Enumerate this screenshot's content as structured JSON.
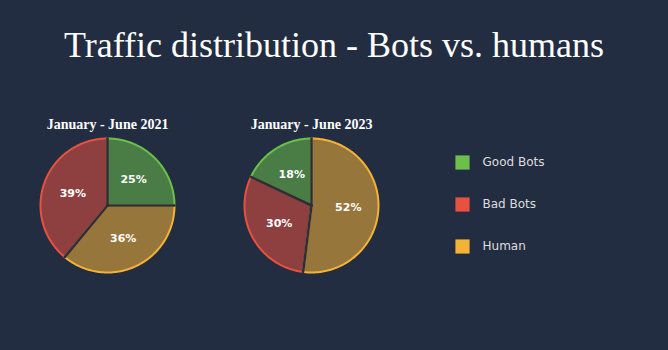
{
  "title": "Traffic distribution - Bots vs. humans",
  "chart_data": [
    {
      "type": "pie",
      "title": "January - June 2021",
      "categories": [
        "Good Bots",
        "Bad Bots",
        "Human"
      ],
      "values": [
        25,
        39,
        36
      ],
      "value_labels": [
        "25%",
        "39%",
        "36%"
      ],
      "colors": [
        "#6cc04a",
        "#e8513f",
        "#f5b335"
      ],
      "data_labels": true,
      "legend": "right"
    },
    {
      "type": "pie",
      "title": "January - June 2023",
      "categories": [
        "Good Bots",
        "Bad Bots",
        "Human"
      ],
      "values": [
        18,
        30,
        52
      ],
      "value_labels": [
        "18%",
        "30%",
        "52%"
      ],
      "colors": [
        "#6cc04a",
        "#e8513f",
        "#f5b335"
      ],
      "data_labels": true
    }
  ]
}
